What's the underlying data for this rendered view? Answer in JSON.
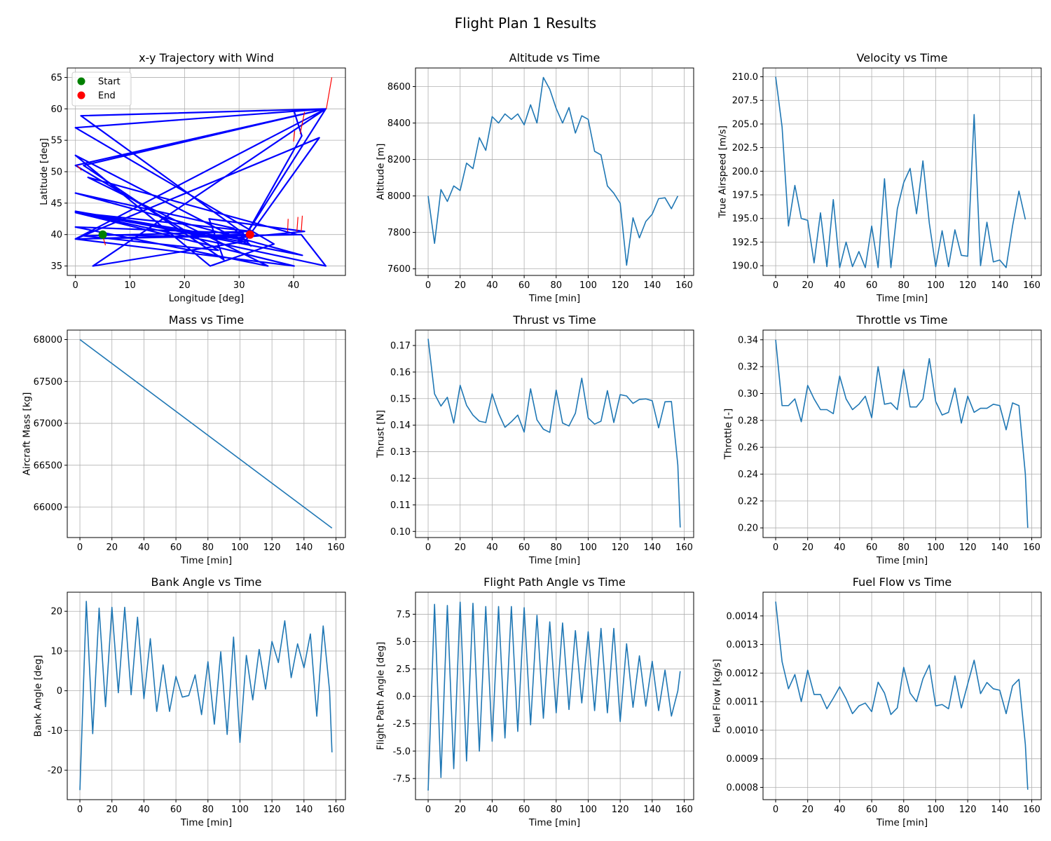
{
  "figure": {
    "title": "Flight Plan 1 Results"
  },
  "chart_data": [
    {
      "type": "line",
      "title": "x-y Trajectory with Wind",
      "xlabel": "Longitude [deg]",
      "ylabel": "Latitude [deg]",
      "xlim": [
        -1.5,
        49.5
      ],
      "ylim": [
        33.5,
        66.5
      ],
      "xticks": [
        0,
        10,
        20,
        30,
        40
      ],
      "yticks": [
        35,
        40,
        45,
        50,
        55,
        60,
        65
      ],
      "grid": true,
      "legend": {
        "placement": "upper-left",
        "entries": [
          {
            "label": "Start",
            "color": "#008000"
          },
          {
            "label": "End",
            "color": "#ff0000"
          }
        ]
      },
      "series": [
        {
          "color": "#0000ff",
          "x": [
            5,
            30,
            42,
            24.5,
            27.2,
            1.5,
            45.9,
            3.2,
            31.8,
            0,
            41.6,
            0,
            29,
            32.2,
            0,
            24.7,
            36.4,
            0,
            45.9,
            1,
            30.8,
            0,
            35.3,
            2.3,
            40.6,
            0,
            40.1,
            0,
            32.4,
            1.5,
            26.2,
            0,
            45.9,
            40.1,
            41.5,
            31.3,
            45.9,
            0,
            30,
            0,
            41.4,
            45.9,
            0,
            31,
            44.7,
            0,
            32
          ],
          "y": [
            40,
            39.5,
            40.5,
            42.5,
            36,
            51,
            60,
            35,
            39,
            43.7,
            36.7,
            46.6,
            41,
            38.2,
            52.6,
            35,
            38.5,
            57,
            60,
            58.9,
            40.2,
            41.2,
            35,
            49.1,
            40,
            39.3,
            35,
            43.5,
            40.5,
            39.8,
            37.5,
            51,
            60,
            59.6,
            55.7,
            40,
            60,
            39.3,
            40,
            39.3,
            40,
            35,
            43.5,
            38.8,
            55.4,
            39.3,
            40
          ]
        },
        {
          "color": "#ff0000",
          "x": [
            46,
            47
          ],
          "y": [
            60,
            65
          ]
        },
        {
          "color": "#ff0000",
          "x": [
            41.2,
            42
          ],
          "y": [
            56,
            59.5
          ]
        },
        {
          "color": "#ff0000",
          "x": [
            40,
            40.2
          ],
          "y": [
            54.8,
            56.5
          ]
        },
        {
          "color": "#ff0000",
          "x": [
            38.9,
            39
          ],
          "y": [
            40.5,
            42.5
          ]
        },
        {
          "color": "#ff0000",
          "x": [
            40.6,
            40.8
          ],
          "y": [
            40.5,
            42.8
          ]
        },
        {
          "color": "#ff0000",
          "x": [
            41.4,
            41.6
          ],
          "y": [
            40.5,
            43
          ]
        },
        {
          "color": "#ff0000",
          "x": [
            5,
            5.5
          ],
          "y": [
            39.8,
            38.3
          ]
        },
        {
          "color": "#ff0000",
          "x": [
            0.3,
            1.1
          ],
          "y": [
            51,
            50.2
          ]
        }
      ],
      "markers": [
        {
          "label": "Start",
          "x": 5,
          "y": 40,
          "color": "#008000"
        },
        {
          "label": "End",
          "x": 32,
          "y": 40,
          "color": "#ff0000"
        }
      ]
    },
    {
      "type": "line",
      "title": "Altitude vs Time",
      "xlabel": "Time [min]",
      "ylabel": "Altitude [m]",
      "xlim": [
        -7.9,
        165.9
      ],
      "ylim": [
        7564,
        8702
      ],
      "xticks": [
        0,
        20,
        40,
        60,
        80,
        100,
        120,
        140,
        160
      ],
      "yticks": [
        7600,
        7800,
        8000,
        8200,
        8400,
        8600
      ],
      "grid": true,
      "series": [
        {
          "color": "#1f77b4",
          "x": [
            0,
            4,
            8,
            12,
            16,
            20,
            24,
            28,
            32,
            36,
            40,
            44,
            48,
            52,
            56,
            60,
            64,
            68,
            72,
            76,
            80,
            84,
            88,
            92,
            96,
            100,
            104,
            108,
            112,
            116,
            120,
            124,
            128,
            132,
            136,
            140,
            144,
            148,
            152,
            156
          ],
          "y": [
            8000,
            7740,
            8035,
            7970,
            8055,
            8030,
            8180,
            8150,
            8320,
            8250,
            8435,
            8400,
            8450,
            8420,
            8450,
            8390,
            8500,
            8400,
            8650,
            8585,
            8480,
            8400,
            8485,
            8345,
            8440,
            8420,
            8245,
            8225,
            8055,
            8015,
            7960,
            7620,
            7880,
            7770,
            7860,
            7900,
            7985,
            7990,
            7930,
            8000
          ]
        }
      ]
    },
    {
      "type": "line",
      "title": "Velocity vs Time",
      "xlabel": "Time [min]",
      "ylabel": "True Airspeed [m/s]",
      "xlim": [
        -7.9,
        165.9
      ],
      "ylim": [
        188.97,
        210.93
      ],
      "xticks": [
        0,
        20,
        40,
        60,
        80,
        100,
        120,
        140,
        160
      ],
      "yticks": [
        190.0,
        192.5,
        195.0,
        197.5,
        200.0,
        202.5,
        205.0,
        207.5,
        210.0
      ],
      "grid": true,
      "series": [
        {
          "color": "#1f77b4",
          "x": [
            0,
            4,
            8,
            12,
            16,
            20,
            24,
            28,
            32,
            36,
            40,
            44,
            48,
            52,
            56,
            60,
            64,
            68,
            72,
            76,
            80,
            84,
            88,
            92,
            96,
            100,
            104,
            108,
            112,
            116,
            120,
            124,
            128,
            132,
            136,
            140,
            144,
            148,
            152,
            156
          ],
          "y": [
            210,
            204.7,
            194.2,
            198.5,
            195,
            194.8,
            190.3,
            195.6,
            189.9,
            197,
            189.8,
            192.5,
            189.9,
            191.5,
            189.8,
            194.2,
            189.8,
            199.2,
            189.8,
            196,
            198.8,
            200.3,
            195.5,
            201.1,
            194.5,
            189.9,
            193.7,
            189.9,
            193.8,
            191.1,
            191,
            206,
            190,
            194.6,
            190.4,
            190.6,
            189.8,
            194.2,
            197.9,
            194.9
          ]
        }
      ]
    },
    {
      "type": "line",
      "title": "Mass vs Time",
      "xlabel": "Time [min]",
      "ylabel": "Aircraft Mass [kg]",
      "xlim": [
        -7.9,
        165.9
      ],
      "ylim": [
        65637,
        68113
      ],
      "xticks": [
        0,
        20,
        40,
        60,
        80,
        100,
        120,
        140,
        160
      ],
      "yticks": [
        66000,
        66500,
        67000,
        67500,
        68000
      ],
      "grid": true,
      "series": [
        {
          "color": "#1f77b4",
          "x": [
            0,
            157.5
          ],
          "y": [
            68000,
            65750
          ]
        }
      ]
    },
    {
      "type": "line",
      "title": "Thrust vs Time",
      "xlabel": "Time [min]",
      "ylabel": "Thrust [N]",
      "xlim": [
        -7.9,
        165.9
      ],
      "ylim": [
        0.0977,
        0.1758
      ],
      "xticks": [
        0,
        20,
        40,
        60,
        80,
        100,
        120,
        140,
        160
      ],
      "yticks": [
        0.1,
        0.11,
        0.12,
        0.13,
        0.14,
        0.15,
        0.16,
        0.17
      ],
      "grid": true,
      "series": [
        {
          "color": "#1f77b4",
          "x": [
            0,
            4,
            8,
            12,
            16,
            20,
            24,
            28,
            32,
            36,
            40,
            44,
            48,
            52,
            56,
            60,
            64,
            68,
            72,
            76,
            80,
            84,
            88,
            92,
            96,
            100,
            104,
            108,
            112,
            116,
            120,
            124,
            128,
            132,
            136,
            140,
            144,
            148,
            152,
            156,
            157.5
          ],
          "y": [
            0.1725,
            0.1518,
            0.1472,
            0.1505,
            0.1408,
            0.155,
            0.1475,
            0.1438,
            0.1415,
            0.141,
            0.1518,
            0.1445,
            0.1392,
            0.1413,
            0.1438,
            0.1374,
            0.1537,
            0.142,
            0.1385,
            0.1373,
            0.1532,
            0.1408,
            0.1397,
            0.1445,
            0.1577,
            0.1427,
            0.1404,
            0.1415,
            0.153,
            0.141,
            0.1515,
            0.151,
            0.1482,
            0.1497,
            0.1499,
            0.1492,
            0.139,
            0.1488,
            0.1489,
            0.125,
            0.1015
          ]
        }
      ]
    },
    {
      "type": "line",
      "title": "Throttle vs Time",
      "xlabel": "Time [min]",
      "ylabel": "Throttle [-]",
      "xlim": [
        -7.9,
        165.9
      ],
      "ylim": [
        0.1928,
        0.3472
      ],
      "xticks": [
        0,
        20,
        40,
        60,
        80,
        100,
        120,
        140,
        160
      ],
      "yticks": [
        0.2,
        0.22,
        0.24,
        0.26,
        0.28,
        0.3,
        0.32,
        0.34
      ],
      "grid": true,
      "series": [
        {
          "color": "#1f77b4",
          "x": [
            0,
            4,
            8,
            12,
            16,
            20,
            24,
            28,
            32,
            36,
            40,
            44,
            48,
            52,
            56,
            60,
            64,
            68,
            72,
            76,
            80,
            84,
            88,
            92,
            96,
            100,
            104,
            108,
            112,
            116,
            120,
            124,
            128,
            132,
            136,
            140,
            144,
            148,
            152,
            156,
            157.5
          ],
          "y": [
            0.34,
            0.291,
            0.291,
            0.296,
            0.279,
            0.306,
            0.296,
            0.288,
            0.288,
            0.285,
            0.313,
            0.296,
            0.288,
            0.292,
            0.298,
            0.282,
            0.32,
            0.292,
            0.293,
            0.288,
            0.318,
            0.29,
            0.29,
            0.296,
            0.326,
            0.294,
            0.284,
            0.286,
            0.304,
            0.278,
            0.298,
            0.286,
            0.289,
            0.289,
            0.292,
            0.291,
            0.273,
            0.293,
            0.291,
            0.24,
            0.2
          ]
        }
      ]
    },
    {
      "type": "line",
      "title": "Bank Angle vs Time",
      "xlabel": "Time [min]",
      "ylabel": "Bank Angle [deg]",
      "xlim": [
        -7.9,
        165.9
      ],
      "ylim": [
        -27.4,
        24.8
      ],
      "xticks": [
        0,
        20,
        40,
        60,
        80,
        100,
        120,
        140,
        160
      ],
      "yticks": [
        -20,
        -10,
        0,
        10,
        20
      ],
      "grid": true,
      "series": [
        {
          "color": "#1f77b4",
          "x": [
            0,
            4,
            8,
            12,
            16,
            20,
            24,
            28,
            32,
            36,
            40,
            44,
            48,
            52,
            56,
            60,
            64,
            68,
            72,
            76,
            80,
            84,
            88,
            92,
            96,
            100,
            104,
            108,
            112,
            116,
            120,
            124,
            128,
            132,
            136,
            140,
            144,
            148,
            152,
            156,
            157.5
          ],
          "y": [
            -25,
            22.5,
            -10.8,
            20.8,
            -4,
            21,
            -0.5,
            21,
            -1,
            18.5,
            -2,
            13.1,
            -5.2,
            6.5,
            -5.2,
            3.6,
            -1.6,
            -1.2,
            4,
            -6,
            7.3,
            -8.4,
            9.8,
            -11,
            13.5,
            -13,
            8.9,
            -2.3,
            10.4,
            0.4,
            12.4,
            7.1,
            17.6,
            3.3,
            11.8,
            5.8,
            14.3,
            -6.4,
            16.3,
            0,
            -15.5
          ]
        }
      ]
    },
    {
      "type": "line",
      "title": "Flight Path Angle vs Time",
      "xlabel": "Time [min]",
      "ylabel": "Flight Path Angle [deg]",
      "xlim": [
        -7.9,
        165.9
      ],
      "ylim": [
        -9.43,
        9.51
      ],
      "xticks": [
        0,
        20,
        40,
        60,
        80,
        100,
        120,
        140,
        160
      ],
      "yticks": [
        -7.5,
        -5.0,
        -2.5,
        0.0,
        2.5,
        5.0,
        7.5
      ],
      "grid": true,
      "series": [
        {
          "color": "#1f77b4",
          "x": [
            0,
            4,
            8,
            12,
            16,
            20,
            24,
            28,
            32,
            36,
            40,
            44,
            48,
            52,
            56,
            60,
            64,
            68,
            72,
            76,
            80,
            84,
            88,
            92,
            96,
            100,
            104,
            108,
            112,
            116,
            120,
            124,
            128,
            132,
            136,
            140,
            144,
            148,
            152,
            156,
            157.5
          ],
          "y": [
            -8.6,
            8.4,
            -7.4,
            8.3,
            -6.6,
            8.6,
            -5.9,
            8.5,
            -5,
            8.2,
            -4.1,
            8.2,
            -3.8,
            8.2,
            -3.2,
            8.1,
            -2.6,
            7.4,
            -2,
            6.8,
            -1.5,
            6.7,
            -1.2,
            6,
            -0.6,
            5.9,
            -1.3,
            6.2,
            -1.5,
            6.2,
            -2.3,
            4.8,
            -1,
            3.7,
            -0.9,
            3.2,
            -1.3,
            2.4,
            -1.8,
            0.5,
            2.3
          ]
        }
      ]
    },
    {
      "type": "line",
      "title": "Fuel Flow vs Time",
      "xlabel": "Time [min]",
      "ylabel": "Fuel Flow [kg/s]",
      "xlim": [
        -7.9,
        165.9
      ],
      "ylim": [
        0.000757,
        0.001483
      ],
      "xticks": [
        0,
        20,
        40,
        60,
        80,
        100,
        120,
        140,
        160
      ],
      "yticks": [
        0.0008,
        0.0009,
        0.001,
        0.0011,
        0.0012,
        0.0013,
        0.0014
      ],
      "grid": true,
      "series": [
        {
          "color": "#1f77b4",
          "x": [
            0,
            4,
            8,
            12,
            16,
            20,
            24,
            28,
            32,
            36,
            40,
            44,
            48,
            52,
            56,
            60,
            64,
            68,
            72,
            76,
            80,
            84,
            88,
            92,
            96,
            100,
            104,
            108,
            112,
            116,
            120,
            124,
            128,
            132,
            136,
            140,
            144,
            148,
            152,
            156,
            157.5
          ],
          "y": [
            0.00145,
            0.00124,
            0.001145,
            0.001195,
            0.0011,
            0.00121,
            0.001125,
            0.001125,
            0.001075,
            0.001112,
            0.001152,
            0.00111,
            0.001058,
            0.001085,
            0.001095,
            0.001065,
            0.001168,
            0.00113,
            0.001055,
            0.001078,
            0.00122,
            0.00113,
            0.0011,
            0.00118,
            0.001228,
            0.001085,
            0.00109,
            0.001075,
            0.00119,
            0.001078,
            0.001162,
            0.001245,
            0.001128,
            0.001167,
            0.001145,
            0.00114,
            0.001058,
            0.001155,
            0.001178,
            0.00095,
            0.000792
          ]
        }
      ]
    }
  ]
}
